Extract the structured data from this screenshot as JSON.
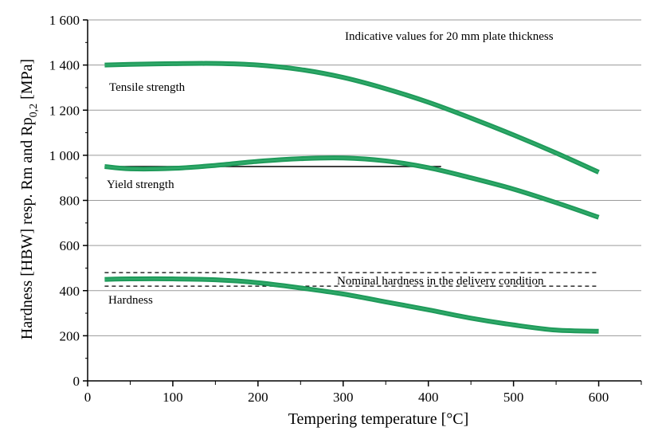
{
  "chart_data": {
    "type": "line",
    "title": "",
    "annotation": "Indicative values for 20 mm plate thickness",
    "xlabel": "Tempering temperature [°C]",
    "ylabel_parts": {
      "main": "Hardness [HBW] resp. Rm and Rp",
      "sub": "0,2",
      "tail": " [MPa]"
    },
    "xlim": [
      0,
      650
    ],
    "ylim": [
      0,
      1600
    ],
    "xticks": [
      0,
      100,
      200,
      300,
      400,
      500,
      600
    ],
    "xtick_labels": [
      "0",
      "100",
      "200",
      "300",
      "400",
      "500",
      "600"
    ],
    "yticks": [
      0,
      200,
      400,
      600,
      800,
      1000,
      1200,
      1400,
      1600
    ],
    "ytick_labels": [
      "0",
      "200",
      "400",
      "600",
      "800",
      "1 000",
      "1 200",
      "1 400",
      "1 600"
    ],
    "grid": "horizontal",
    "series": [
      {
        "name": "Tensile strength",
        "x": [
          20,
          50,
          100,
          150,
          200,
          250,
          300,
          350,
          400,
          450,
          500,
          550,
          600
        ],
        "values": [
          1400,
          1403,
          1406,
          1407,
          1400,
          1380,
          1345,
          1295,
          1235,
          1165,
          1090,
          1010,
          925
        ]
      },
      {
        "name": "Yield strength",
        "x": [
          20,
          50,
          100,
          150,
          200,
          250,
          300,
          350,
          400,
          450,
          500,
          550,
          600
        ],
        "values": [
          950,
          940,
          942,
          955,
          973,
          985,
          988,
          975,
          945,
          900,
          850,
          790,
          725
        ]
      },
      {
        "name": "Hardness",
        "x": [
          20,
          50,
          100,
          150,
          200,
          250,
          300,
          350,
          400,
          450,
          500,
          550,
          600
        ],
        "values": [
          450,
          452,
          452,
          448,
          435,
          412,
          385,
          350,
          315,
          278,
          248,
          225,
          220
        ]
      }
    ],
    "reference_lines": [
      {
        "style": "solid",
        "y": 950,
        "x_range": [
          20,
          415
        ]
      },
      {
        "style": "dashed",
        "y": 480,
        "x_range": [
          20,
          600
        ]
      },
      {
        "style": "dashed",
        "y": 420,
        "x_range": [
          20,
          600
        ]
      }
    ],
    "reference_label": "Nominal hardness in the delivery condition"
  }
}
